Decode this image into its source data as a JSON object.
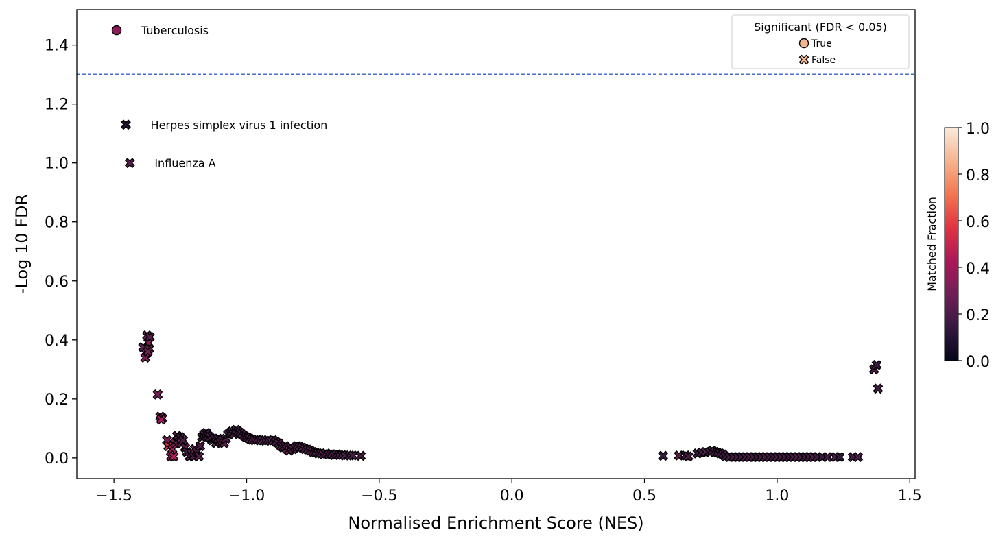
{
  "chart_data": {
    "type": "scatter",
    "xlabel": "Normalised Enrichment Score (NES)",
    "ylabel": "-Log 10 FDR",
    "xlim": [
      -1.64,
      1.52
    ],
    "ylim": [
      -0.07,
      1.52
    ],
    "x_ticks": [
      -1.5,
      -1.0,
      -0.5,
      0.0,
      0.5,
      1.0,
      1.5
    ],
    "x_tick_labels": [
      "−1.5",
      "−1.0",
      "−0.5",
      "0.0",
      "0.5",
      "1.0",
      "1.5"
    ],
    "y_ticks": [
      0.0,
      0.2,
      0.4,
      0.6,
      0.8,
      1.0,
      1.2,
      1.4
    ],
    "y_tick_labels": [
      "0.0",
      "0.2",
      "0.4",
      "0.6",
      "0.8",
      "1.0",
      "1.2",
      "1.4"
    ],
    "grid": false,
    "threshold_line": {
      "y": 1.301,
      "color": "#4a6fd1",
      "style": "dashed"
    },
    "legend": {
      "title": "Significant (FDR < 0.05)",
      "placement": "top-right",
      "entries": [
        {
          "label": "True",
          "marker": "circle",
          "color": "#f5b48c"
        },
        {
          "label": "False",
          "marker": "x",
          "color": "#f5b48c"
        }
      ]
    },
    "colorbar": {
      "label": "Matched Fraction",
      "range": [
        0.0,
        1.0
      ],
      "ticks": [
        0.0,
        0.2,
        0.4,
        0.6,
        0.8,
        1.0
      ],
      "tick_labels": [
        "0.0",
        "0.2",
        "0.4",
        "0.6",
        "0.8",
        "1.0"
      ],
      "colormap": "rocket",
      "stops": [
        "#03051a",
        "#35193e",
        "#701f57",
        "#ad1759",
        "#e13342",
        "#f37651",
        "#f6b48f",
        "#faebdd"
      ]
    },
    "annotations": [
      {
        "text": "Tuberculosis",
        "x": -1.49,
        "y": 1.45,
        "marker": "circle",
        "value": 0.35
      },
      {
        "text": "Herpes simplex virus 1 infection",
        "x": -1.455,
        "y": 1.13,
        "marker": "x",
        "value": 0.08
      },
      {
        "text": "Influenza A",
        "x": -1.44,
        "y": 1.0,
        "marker": "x",
        "value": 0.22
      }
    ],
    "points": [
      [
        -1.39,
        0.375,
        0.25
      ],
      [
        -1.375,
        0.415,
        0.3
      ],
      [
        -1.37,
        0.39,
        0.35
      ],
      [
        -1.378,
        0.355,
        0.3
      ],
      [
        -1.365,
        0.41,
        0.22
      ],
      [
        -1.382,
        0.34,
        0.32
      ],
      [
        -1.368,
        0.37,
        0.28
      ],
      [
        -1.372,
        0.36,
        0.3
      ],
      [
        -1.335,
        0.215,
        0.3
      ],
      [
        -1.325,
        0.14,
        0.28
      ],
      [
        -1.318,
        0.135,
        0.35
      ],
      [
        -1.322,
        0.13,
        0.4
      ],
      [
        -1.3,
        0.06,
        0.3
      ],
      [
        -1.295,
        0.04,
        0.55
      ],
      [
        -1.285,
        0.005,
        0.35
      ],
      [
        -1.28,
        0.03,
        0.4
      ],
      [
        -1.275,
        0.005,
        0.45
      ],
      [
        -1.27,
        0.05,
        0.3
      ],
      [
        -1.262,
        0.075,
        0.22
      ],
      [
        -1.258,
        0.06,
        0.25
      ],
      [
        -1.25,
        0.07,
        0.2
      ],
      [
        -1.245,
        0.05,
        0.28
      ],
      [
        -1.24,
        0.06,
        0.2
      ],
      [
        -1.232,
        0.035,
        0.25
      ],
      [
        -1.225,
        0.02,
        0.18
      ],
      [
        -1.215,
        0.005,
        0.2
      ],
      [
        -1.208,
        0.015,
        0.22
      ],
      [
        -1.2,
        0.005,
        0.2
      ],
      [
        -1.195,
        0.03,
        0.25
      ],
      [
        -1.188,
        0.02,
        0.2
      ],
      [
        -1.18,
        0.005,
        0.22
      ],
      [
        -1.175,
        0.04,
        0.2
      ],
      [
        -1.168,
        0.07,
        0.18
      ],
      [
        -1.16,
        0.08,
        0.2
      ],
      [
        -1.152,
        0.085,
        0.15
      ],
      [
        -1.145,
        0.075,
        0.18
      ],
      [
        -1.138,
        0.07,
        0.2
      ],
      [
        -1.13,
        0.06,
        0.22
      ],
      [
        -1.122,
        0.065,
        0.15
      ],
      [
        -1.115,
        0.05,
        0.25
      ],
      [
        -1.108,
        0.065,
        0.18
      ],
      [
        -1.1,
        0.055,
        0.2
      ],
      [
        -1.092,
        0.06,
        0.22
      ],
      [
        -1.085,
        0.05,
        0.25
      ],
      [
        -1.078,
        0.065,
        0.2
      ],
      [
        -1.07,
        0.08,
        0.18
      ],
      [
        -1.062,
        0.085,
        0.15
      ],
      [
        -1.055,
        0.09,
        0.18
      ],
      [
        -1.048,
        0.08,
        0.2
      ],
      [
        -1.04,
        0.095,
        0.18
      ],
      [
        -1.032,
        0.09,
        0.15
      ],
      [
        -1.025,
        0.085,
        0.2
      ],
      [
        -1.018,
        0.08,
        0.25
      ],
      [
        -1.01,
        0.075,
        0.18
      ],
      [
        -1.002,
        0.07,
        0.2
      ],
      [
        -0.995,
        0.068,
        0.18
      ],
      [
        -0.988,
        0.065,
        0.22
      ],
      [
        -0.98,
        0.062,
        0.2
      ],
      [
        -0.97,
        0.06,
        0.25
      ],
      [
        -0.96,
        0.062,
        0.18
      ],
      [
        -0.95,
        0.06,
        0.2
      ],
      [
        -0.94,
        0.06,
        0.28
      ],
      [
        -0.93,
        0.058,
        0.2
      ],
      [
        -0.92,
        0.06,
        0.18
      ],
      [
        -0.91,
        0.058,
        0.25
      ],
      [
        -0.9,
        0.06,
        0.2
      ],
      [
        -0.89,
        0.055,
        0.22
      ],
      [
        -0.88,
        0.05,
        0.2
      ],
      [
        -0.87,
        0.04,
        0.25
      ],
      [
        -0.862,
        0.035,
        0.2
      ],
      [
        -0.855,
        0.04,
        0.22
      ],
      [
        -0.848,
        0.03,
        0.25
      ],
      [
        -0.84,
        0.025,
        0.3
      ],
      [
        -0.832,
        0.035,
        0.2
      ],
      [
        -0.825,
        0.03,
        0.22
      ],
      [
        -0.818,
        0.035,
        0.2
      ],
      [
        -0.81,
        0.04,
        0.18
      ],
      [
        -0.8,
        0.038,
        0.2
      ],
      [
        -0.79,
        0.035,
        0.22
      ],
      [
        -0.78,
        0.03,
        0.2
      ],
      [
        -0.77,
        0.028,
        0.18
      ],
      [
        -0.76,
        0.025,
        0.2
      ],
      [
        -0.75,
        0.02,
        0.22
      ],
      [
        -0.74,
        0.018,
        0.2
      ],
      [
        -0.73,
        0.015,
        0.18
      ],
      [
        -0.72,
        0.015,
        0.2
      ],
      [
        -0.71,
        0.012,
        0.22
      ],
      [
        -0.7,
        0.015,
        0.2
      ],
      [
        -0.69,
        0.012,
        0.18
      ],
      [
        -0.68,
        0.012,
        0.2
      ],
      [
        -0.67,
        0.01,
        0.2
      ],
      [
        -0.66,
        0.012,
        0.18
      ],
      [
        -0.65,
        0.01,
        0.2
      ],
      [
        -0.64,
        0.01,
        0.18
      ],
      [
        -0.63,
        0.008,
        0.2
      ],
      [
        -0.61,
        0.008,
        0.18
      ],
      [
        -0.6,
        0.008,
        0.2
      ],
      [
        -0.57,
        0.007,
        0.2
      ],
      [
        0.57,
        0.007,
        0.15
      ],
      [
        0.63,
        0.008,
        0.25
      ],
      [
        0.655,
        0.008,
        0.18
      ],
      [
        0.665,
        0.005,
        0.2
      ],
      [
        0.7,
        0.015,
        0.15
      ],
      [
        0.715,
        0.018,
        0.18
      ],
      [
        0.73,
        0.02,
        0.2
      ],
      [
        0.745,
        0.02,
        0.18
      ],
      [
        0.755,
        0.025,
        0.15
      ],
      [
        0.765,
        0.02,
        0.2
      ],
      [
        0.775,
        0.018,
        0.18
      ],
      [
        0.785,
        0.015,
        0.2
      ],
      [
        0.795,
        0.012,
        0.18
      ],
      [
        0.805,
        0.005,
        0.15
      ],
      [
        0.82,
        0.003,
        0.18
      ],
      [
        0.835,
        0.003,
        0.2
      ],
      [
        0.85,
        0.003,
        0.18
      ],
      [
        0.865,
        0.003,
        0.15
      ],
      [
        0.88,
        0.003,
        0.18
      ],
      [
        0.895,
        0.003,
        0.2
      ],
      [
        0.91,
        0.003,
        0.18
      ],
      [
        0.925,
        0.003,
        0.15
      ],
      [
        0.94,
        0.003,
        0.18
      ],
      [
        0.955,
        0.003,
        0.2
      ],
      [
        0.97,
        0.003,
        0.18
      ],
      [
        0.985,
        0.003,
        0.15
      ],
      [
        1.0,
        0.003,
        0.18
      ],
      [
        1.015,
        0.003,
        0.2
      ],
      [
        1.03,
        0.003,
        0.18
      ],
      [
        1.045,
        0.003,
        0.15
      ],
      [
        1.06,
        0.003,
        0.18
      ],
      [
        1.075,
        0.003,
        0.2
      ],
      [
        1.09,
        0.003,
        0.18
      ],
      [
        1.105,
        0.003,
        0.15
      ],
      [
        1.12,
        0.003,
        0.18
      ],
      [
        1.135,
        0.003,
        0.2
      ],
      [
        1.15,
        0.003,
        0.18
      ],
      [
        1.17,
        0.003,
        0.15
      ],
      [
        1.19,
        0.003,
        0.18
      ],
      [
        1.22,
        0.003,
        0.2
      ],
      [
        1.235,
        0.003,
        0.15
      ],
      [
        1.285,
        0.003,
        0.18
      ],
      [
        1.305,
        0.003,
        0.2
      ],
      [
        1.365,
        0.3,
        0.2
      ],
      [
        1.375,
        0.315,
        0.15
      ],
      [
        1.38,
        0.235,
        0.18
      ]
    ]
  }
}
